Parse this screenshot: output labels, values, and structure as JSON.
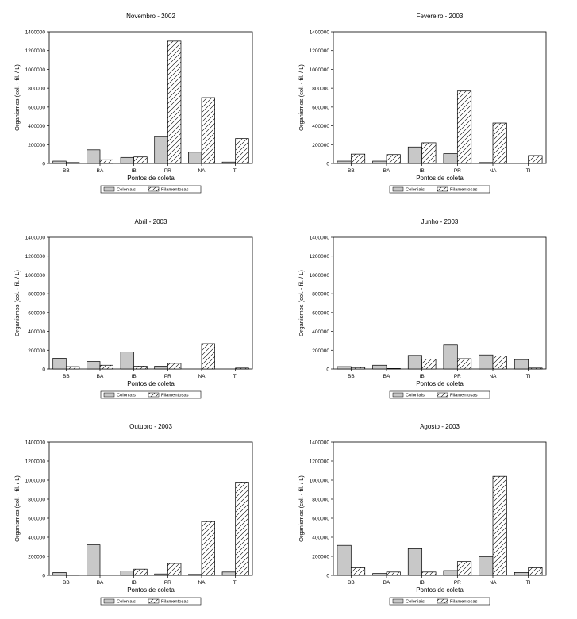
{
  "chart_data": [
    {
      "type": "bar",
      "title": "Novembro - 2002",
      "xlabel": "Pontos de coleta",
      "ylabel": "Organismos (col. - fil. / L)",
      "categories": [
        "BB",
        "BA",
        "IB",
        "PR",
        "NA",
        "TI"
      ],
      "series": [
        {
          "name": "Coloniais",
          "values": [
            25000,
            145000,
            65000,
            285000,
            120000,
            15000
          ]
        },
        {
          "name": "Filamentosas",
          "values": [
            10000,
            40000,
            70000,
            1300000,
            700000,
            265000
          ]
        }
      ],
      "ylim": [
        0,
        1400000
      ],
      "yticks": [
        "0",
        "200000",
        "400000",
        "600000",
        "800000",
        "1000000",
        "1200000",
        "1400000"
      ],
      "legend": "bottom"
    },
    {
      "type": "bar",
      "title": "Fevereiro - 2003",
      "xlabel": "Pontos de coleta",
      "ylabel": "Organismos (col. - fil. / L)",
      "categories": [
        "BB",
        "BA",
        "IB",
        "PR",
        "NA",
        "TI"
      ],
      "series": [
        {
          "name": "Coloniais",
          "values": [
            25000,
            25000,
            175000,
            105000,
            10000,
            0
          ]
        },
        {
          "name": "Filamentosas",
          "values": [
            100000,
            95000,
            220000,
            770000,
            430000,
            85000
          ]
        }
      ],
      "ylim": [
        0,
        1400000
      ],
      "yticks": [
        "0",
        "200000",
        "400000",
        "600000",
        "800000",
        "1000000",
        "1200000",
        "1400000"
      ],
      "legend": "bottom"
    },
    {
      "type": "bar",
      "title": "Abril - 2003",
      "xlabel": "Pontos de coleta",
      "ylabel": "Organismos (col. - fil. / L)",
      "categories": [
        "BB",
        "BA",
        "IB",
        "PR",
        "NA",
        "TI"
      ],
      "series": [
        {
          "name": "Coloniais",
          "values": [
            115000,
            80000,
            180000,
            30000,
            0,
            0
          ]
        },
        {
          "name": "Filamentosas",
          "values": [
            25000,
            40000,
            30000,
            60000,
            270000,
            10000
          ]
        }
      ],
      "ylim": [
        0,
        1400000
      ],
      "yticks": [
        "0",
        "200000",
        "400000",
        "600000",
        "800000",
        "1000000",
        "1200000",
        "1400000"
      ],
      "legend": "bottom"
    },
    {
      "type": "bar",
      "title": "Junho - 2003",
      "xlabel": "Pontos de coleta",
      "ylabel": "Organismos (col. - fil. / L)",
      "categories": [
        "BB",
        "BA",
        "IB",
        "PR",
        "NA",
        "TI"
      ],
      "series": [
        {
          "name": "Coloniais",
          "values": [
            25000,
            40000,
            145000,
            255000,
            150000,
            100000
          ]
        },
        {
          "name": "Filamentosas",
          "values": [
            15000,
            5000,
            105000,
            110000,
            140000,
            10000
          ]
        }
      ],
      "ylim": [
        0,
        1400000
      ],
      "yticks": [
        "0",
        "200000",
        "400000",
        "600000",
        "800000",
        "1000000",
        "1200000",
        "1400000"
      ],
      "legend": "bottom"
    },
    {
      "type": "bar",
      "title": "Outubro - 2003",
      "xlabel": "Pontos de coleta",
      "ylabel": "Organismos (col. - fil. / L)",
      "categories": [
        "BB",
        "BA",
        "IB",
        "PR",
        "NA",
        "TI"
      ],
      "series": [
        {
          "name": "Coloniais",
          "values": [
            30000,
            320000,
            45000,
            15000,
            10000,
            35000
          ]
        },
        {
          "name": "Filamentosas",
          "values": [
            5000,
            0,
            65000,
            125000,
            565000,
            980000
          ]
        }
      ],
      "ylim": [
        0,
        1400000
      ],
      "yticks": [
        "0",
        "200000",
        "400000",
        "600000",
        "800000",
        "1000000",
        "1200000",
        "1400000"
      ],
      "legend": "bottom"
    },
    {
      "type": "bar",
      "title": "Agosto - 2003",
      "xlabel": "Pontos de coleta",
      "ylabel": "Organismos (col. - fil. / L)",
      "categories": [
        "BB",
        "BA",
        "IB",
        "PR",
        "NA",
        "TI"
      ],
      "series": [
        {
          "name": "Coloniais",
          "values": [
            315000,
            20000,
            280000,
            50000,
            195000,
            30000
          ]
        },
        {
          "name": "Filamentosas",
          "values": [
            80000,
            35000,
            35000,
            145000,
            1040000,
            80000
          ]
        }
      ],
      "ylim": [
        0,
        1400000
      ],
      "yticks": [
        "0",
        "200000",
        "400000",
        "600000",
        "800000",
        "1000000",
        "1200000",
        "1400000"
      ],
      "legend": "bottom"
    }
  ],
  "colors": {
    "coloniais_fill": "#c8c8c8",
    "filamentosas_fill": "#ffffff",
    "hatch": "#000000",
    "axis": "#000000"
  }
}
